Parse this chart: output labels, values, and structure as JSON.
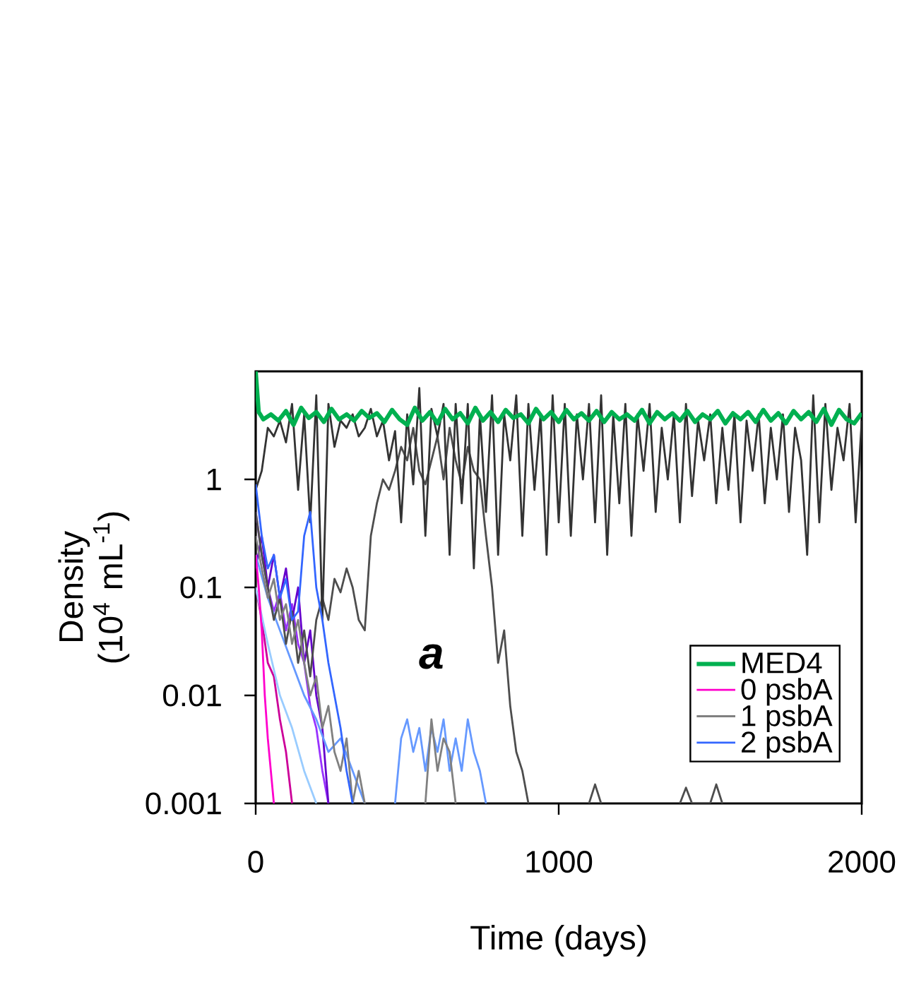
{
  "chart_data": {
    "type": "line",
    "xlabel": "Time (days)",
    "ylabel": "Density (10$^{4}$ mL$^{-1}$)",
    "log": "y",
    "xlim": [
      0,
      2000
    ],
    "ylim": [
      0.001,
      10
    ],
    "xticks": [
      0,
      1000,
      2000
    ],
    "yticks": [
      0.001,
      0.01,
      0.1,
      1
    ],
    "grid": false,
    "legend": "bottom right",
    "marker": "none",
    "line_style": "solid",
    "annotations": [
      "a"
    ],
    "series": [
      {
        "name": "MED4",
        "color": "#00b050",
        "x": [
          0,
          10,
          25,
          50,
          75,
          100,
          125,
          150,
          175,
          200,
          225,
          250,
          275,
          300,
          325,
          350,
          375,
          400,
          425,
          450,
          475,
          500,
          525,
          550,
          575,
          600,
          625,
          650,
          675,
          700,
          725,
          750,
          775,
          800,
          825,
          850,
          875,
          900,
          925,
          950,
          975,
          1000,
          1025,
          1050,
          1075,
          1100,
          1125,
          1150,
          1175,
          1200,
          1225,
          1250,
          1275,
          1300,
          1325,
          1350,
          1375,
          1400,
          1425,
          1450,
          1475,
          1500,
          1525,
          1550,
          1575,
          1600,
          1625,
          1650,
          1675,
          1700,
          1725,
          1750,
          1775,
          1800,
          1825,
          1850,
          1875,
          1900,
          1925,
          1950,
          1975,
          2000
        ],
        "values": [
          10,
          4.2,
          3.6,
          4.0,
          3.5,
          4.3,
          3.2,
          4.6,
          3.7,
          4.2,
          3.4,
          4.5,
          3.6,
          4.0,
          3.5,
          4.3,
          3.7,
          4.1,
          3.4,
          4.4,
          3.6,
          3.2,
          4.6,
          3.5,
          4.2,
          3.3,
          4.5,
          3.6,
          4.1,
          3.3,
          4.6,
          3.5,
          4.2,
          3.4,
          4.4,
          3.7,
          4.0,
          3.3,
          4.5,
          3.6,
          4.2,
          3.4,
          4.4,
          3.6,
          4.1,
          3.5,
          4.3,
          3.4,
          4.2,
          3.6,
          4.0,
          3.5,
          4.4,
          3.3,
          4.2,
          3.6,
          4.1,
          3.5,
          4.3,
          3.4,
          4.0,
          3.6,
          4.3,
          3.3,
          4.1,
          3.6,
          4.2,
          3.4,
          4.4,
          3.5,
          4.1,
          3.3,
          4.3,
          3.6,
          4.2,
          3.4,
          4.5,
          3.2,
          4.4,
          3.6,
          3.3,
          4.1
        ]
      },
      {
        "name": "0 psbA",
        "color": "#ff00cc",
        "x": [
          0,
          10,
          20,
          30,
          40,
          50,
          60
        ],
        "values": [
          0.2,
          0.1,
          0.04,
          0.01,
          0.004,
          0.002,
          0.001
        ]
      },
      {
        "name": "1 psbA",
        "color": "#808080",
        "x": [
          0,
          20,
          40,
          60,
          80,
          100,
          120,
          140,
          160,
          180,
          200,
          220,
          240,
          260,
          280,
          300,
          320,
          340,
          360,
          380,
          560,
          580,
          600,
          620,
          640,
          660
        ],
        "values": [
          0.3,
          0.15,
          0.08,
          0.12,
          0.05,
          0.07,
          0.03,
          0.05,
          0.02,
          0.01,
          0.015,
          0.005,
          0.008,
          0.003,
          0.002,
          0.004,
          0.001,
          0.002,
          0.001,
          null,
          0.001,
          0.006,
          0.002,
          0.004,
          0.003,
          0.001
        ]
      },
      {
        "name": "2 psbA",
        "color": "#3366ff",
        "x": [
          0,
          20,
          40,
          60,
          80,
          100,
          120,
          140,
          160,
          180,
          200,
          220,
          240,
          260,
          280,
          300,
          320
        ],
        "values": [
          0.9,
          0.3,
          0.15,
          0.2,
          0.08,
          0.12,
          0.05,
          0.06,
          0.3,
          0.5,
          0.1,
          0.05,
          0.02,
          0.01,
          0.005,
          0.002,
          0.001
        ]
      },
      {
        "color": "#cc0099",
        "x": [
          0,
          20,
          40,
          60,
          80,
          100,
          120
        ],
        "values": [
          0.1,
          0.05,
          0.02,
          0.015,
          0.006,
          0.003,
          0.001
        ]
      },
      {
        "color": "#9933ff",
        "x": [
          0,
          20,
          40,
          60,
          80,
          100,
          120,
          140,
          160,
          180,
          200,
          220,
          240
        ],
        "values": [
          0.5,
          0.2,
          0.1,
          0.06,
          0.09,
          0.04,
          0.07,
          0.03,
          0.02,
          0.008,
          0.005,
          0.002,
          0.001
        ]
      },
      {
        "color": "#6600cc",
        "x": [
          0,
          20,
          40,
          60,
          80,
          100,
          120,
          140,
          160,
          180,
          200,
          220,
          240
        ],
        "values": [
          0.15,
          0.3,
          0.1,
          0.2,
          0.08,
          0.15,
          0.05,
          0.1,
          0.02,
          0.04,
          0.01,
          0.005,
          0.001
        ]
      },
      {
        "color": "#6699ff",
        "x": [
          0,
          40,
          80,
          120,
          160,
          200,
          240,
          280,
          320,
          360,
          380,
          460,
          480,
          500,
          520,
          540,
          560,
          580,
          600,
          620,
          640,
          660,
          680,
          700,
          720,
          740,
          760
        ],
        "values": [
          0.2,
          0.08,
          0.04,
          0.02,
          0.01,
          0.006,
          0.003,
          0.004,
          0.002,
          0.001,
          null,
          0.001,
          0.004,
          0.006,
          0.003,
          0.005,
          0.002,
          0.005,
          0.003,
          0.006,
          0.002,
          0.004,
          0.002,
          0.006,
          0.003,
          0.002,
          0.001
        ]
      },
      {
        "color": "#99ccff",
        "x": [
          0,
          40,
          80,
          120,
          160,
          200
        ],
        "values": [
          0.1,
          0.03,
          0.01,
          0.005,
          0.002,
          0.001
        ]
      },
      {
        "color": "#4d4d4d",
        "x": [
          0,
          20,
          40,
          60,
          80,
          100,
          120,
          140,
          160,
          180,
          200,
          220,
          240,
          260,
          280,
          300,
          320,
          340,
          360,
          380,
          400,
          420,
          440,
          460,
          480,
          500,
          520,
          540,
          560,
          580,
          600,
          620,
          640,
          660,
          680,
          700,
          720,
          740,
          760,
          780,
          800,
          820,
          840,
          860,
          880,
          900,
          920,
          1100,
          1120,
          1140,
          1160,
          1400,
          1420,
          1440,
          1500,
          1520,
          1540
        ],
        "values": [
          0.5,
          0.2,
          0.1,
          0.05,
          0.08,
          0.03,
          0.06,
          0.02,
          0.04,
          0.015,
          0.05,
          0.08,
          0.05,
          0.12,
          0.09,
          0.15,
          0.1,
          0.05,
          0.04,
          0.3,
          0.6,
          1.0,
          0.8,
          1.2,
          2,
          1.5,
          3,
          1.2,
          0.9,
          1.5,
          2.5,
          1,
          3,
          1.5,
          0.9,
          2,
          1.2,
          1.0,
          0.3,
          0.1,
          0.02,
          0.04,
          0.008,
          0.003,
          0.002,
          0.001,
          null,
          0.001,
          0.0015,
          0.001,
          null,
          0.001,
          0.0014,
          0.001,
          0.001,
          0.0015,
          0.001
        ]
      },
      {
        "color": "#333333",
        "x": [
          0,
          20,
          40,
          60,
          80,
          100,
          120,
          140,
          160,
          180,
          200,
          220,
          240,
          260,
          280,
          300,
          320,
          340,
          360,
          380,
          400,
          420,
          440,
          460,
          480,
          500,
          520,
          540,
          560,
          580,
          600,
          620,
          640,
          660,
          680,
          700,
          720,
          740,
          760,
          780,
          800,
          820,
          840,
          860,
          880,
          900,
          920,
          940,
          960,
          980,
          1000,
          1020,
          1040,
          1060,
          1080,
          1100,
          1120,
          1140,
          1160,
          1180,
          1200,
          1220,
          1240,
          1260,
          1280,
          1300,
          1320,
          1340,
          1360,
          1380,
          1400,
          1420,
          1440,
          1460,
          1480,
          1500,
          1520,
          1540,
          1560,
          1580,
          1600,
          1620,
          1640,
          1660,
          1680,
          1700,
          1720,
          1740,
          1760,
          1780,
          1800,
          1820,
          1840,
          1860,
          1880,
          1900,
          1920,
          1940,
          1960,
          1980,
          2000
        ],
        "values": [
          0.8,
          1.2,
          3,
          2.5,
          3.5,
          2.2,
          5,
          0.8,
          4,
          0.4,
          6,
          0.05,
          5,
          2,
          3.5,
          3,
          4,
          2.5,
          3,
          4.5,
          2.5,
          3.5,
          1.5,
          2.8,
          0.4,
          4,
          0.9,
          7,
          0.3,
          4.5,
          2.5,
          5,
          0.2,
          5,
          0.6,
          5,
          0.15,
          4,
          0.5,
          6,
          0.2,
          4,
          1.5,
          6,
          0.3,
          5,
          0.8,
          4,
          0.2,
          6,
          0.4,
          5,
          0.3,
          4,
          1,
          5,
          0.4,
          6,
          0.2,
          4,
          0.6,
          5,
          0.3,
          4,
          1.2,
          5,
          0.5,
          3,
          1,
          4,
          0.4,
          5,
          0.7,
          3.5,
          1.5,
          4,
          0.6,
          3,
          0.8,
          4,
          0.4,
          3.5,
          1.2,
          4,
          0.6,
          3,
          1,
          4,
          0.5,
          3,
          1.5,
          0.2,
          6,
          0.4,
          5,
          0.8,
          3,
          1.5,
          5,
          0.4,
          3.5
        ]
      }
    ]
  }
}
